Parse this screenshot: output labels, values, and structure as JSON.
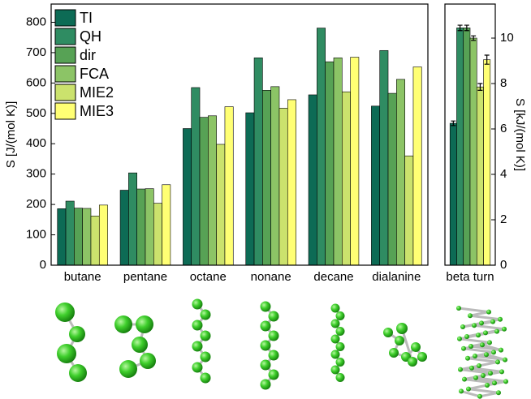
{
  "chart_data": [
    {
      "type": "bar",
      "ylabel": "S [J/(mol K)]",
      "categories": [
        "butane",
        "pentane",
        "octane",
        "nonane",
        "decane",
        "dialanine"
      ],
      "series": [
        {
          "name": "TI",
          "color": "#0d6b55",
          "values": [
            186,
            247,
            450,
            502,
            561,
            524
          ]
        },
        {
          "name": "QH",
          "color": "#2f8c62",
          "values": [
            211,
            304,
            585,
            683,
            781,
            707
          ]
        },
        {
          "name": "dir",
          "color": "#57a255",
          "values": [
            188,
            251,
            487,
            576,
            670,
            566
          ]
        },
        {
          "name": "FCA",
          "color": "#8cc466",
          "values": [
            187,
            252,
            492,
            588,
            683,
            612
          ]
        },
        {
          "name": "MIE2",
          "color": "#cbe26d",
          "values": [
            162,
            204,
            398,
            517,
            571,
            360
          ]
        },
        {
          "name": "MIE3",
          "color": "#ffff74",
          "values": [
            198,
            265,
            522,
            545,
            685,
            653
          ]
        }
      ],
      "ylim": [
        0,
        860
      ],
      "yticks": [
        0,
        100,
        200,
        300,
        400,
        500,
        600,
        700,
        800
      ],
      "legend": "upper left"
    },
    {
      "type": "bar",
      "ylabel": "S [kJ/(mol K)]",
      "categories": [
        "beta turn"
      ],
      "series": [
        {
          "color": "#0d6b55",
          "values": [
            6.25
          ],
          "errors": [
            0.1
          ]
        },
        {
          "color": "#2f8c62",
          "values": [
            10.45
          ],
          "errors": [
            0.12
          ]
        },
        {
          "color": "#57a255",
          "values": [
            10.45
          ],
          "errors": [
            0.12
          ]
        },
        {
          "color": "#8cc466",
          "values": [
            10.0
          ],
          "errors": [
            0.1
          ]
        },
        {
          "color": "#cbe26d",
          "values": [
            7.85
          ],
          "errors": [
            0.15
          ]
        },
        {
          "color": "#ffff74",
          "values": [
            9.05
          ],
          "errors": [
            0.2
          ]
        }
      ],
      "ylim": [
        0,
        11.5
      ],
      "yticks": [
        0,
        2,
        4,
        6,
        8,
        10
      ]
    }
  ]
}
